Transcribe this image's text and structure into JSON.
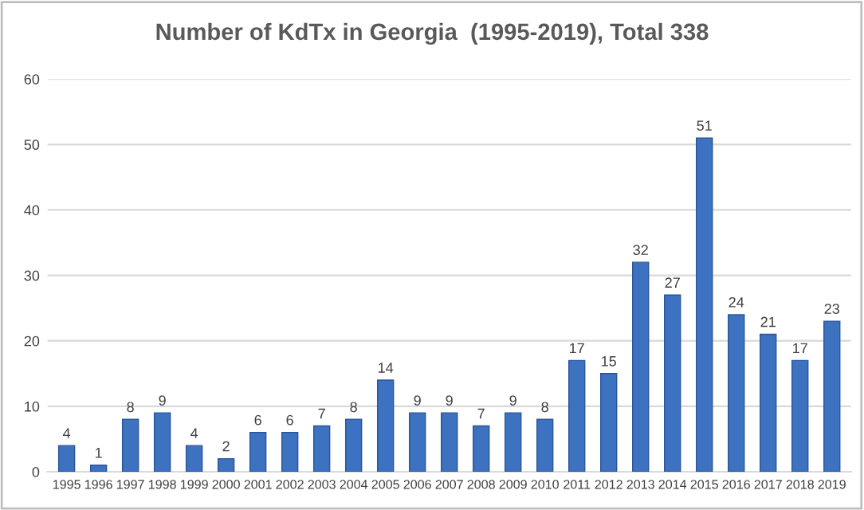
{
  "chart_data": {
    "type": "bar",
    "title": "Number of KdTx in Georgia  (1995-2019), Total 338",
    "categories": [
      "1995",
      "1996",
      "1997",
      "1998",
      "1999",
      "2000",
      "2001",
      "2002",
      "2003",
      "2004",
      "2005",
      "2006",
      "2007",
      "2008",
      "2009",
      "2010",
      "2011",
      "2012",
      "2013",
      "2014",
      "2015",
      "2016",
      "2017",
      "2018",
      "2019"
    ],
    "values": [
      4,
      1,
      8,
      9,
      4,
      2,
      6,
      6,
      7,
      8,
      14,
      9,
      9,
      7,
      9,
      8,
      17,
      15,
      32,
      27,
      51,
      24,
      21,
      17,
      23
    ],
    "color": "#3c72c0",
    "ylim": [
      0,
      60
    ],
    "yticks": [
      0,
      10,
      20,
      30,
      40,
      50,
      60
    ],
    "grid": "y",
    "data_labels": true
  }
}
